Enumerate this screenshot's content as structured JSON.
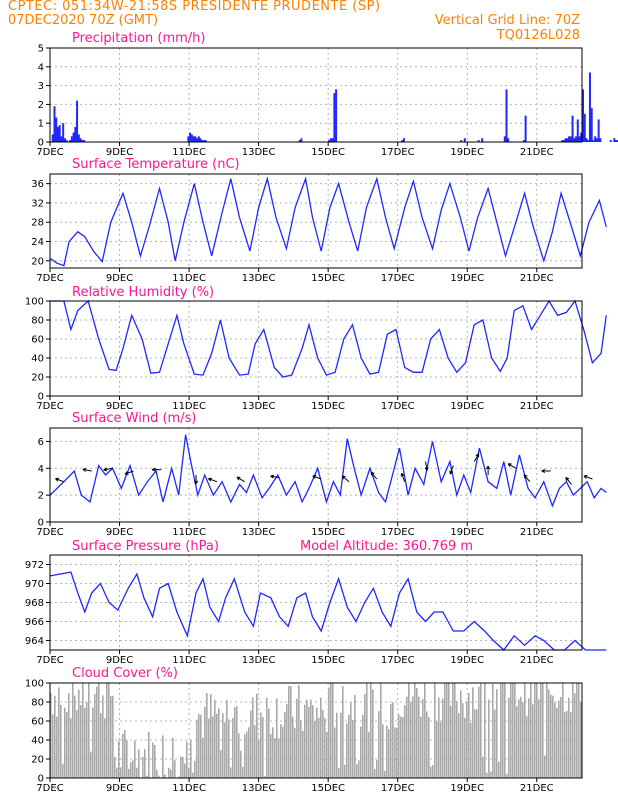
{
  "header": {
    "line1": "CPTEC:   051:34W-21:58S   PRESIDENTE PRUDENTE (SP)",
    "line2_left": "07DEC2020 70Z (GMT)",
    "line2_right": "Vertical Grid Line: 70Z",
    "line3_right": "TQ0126L028"
  },
  "colors": {
    "header": "#ff8000",
    "title": "#ff1493",
    "line": "#1e28ff",
    "bar": "#1e28ff",
    "cloud": "#a9a9a9",
    "grid": "#b4b4b4"
  },
  "chart_data": [
    {
      "id": "precip",
      "type": "bar",
      "title": "Precipitation (mm/h)",
      "xticks": [
        "7DEC",
        "9DEC",
        "11DEC",
        "13DEC",
        "15DEC",
        "17DEC",
        "19DEC",
        "21DEC"
      ],
      "xstart_label": "7DEC",
      "ylim": [
        0,
        5
      ],
      "yticks": [
        0,
        1,
        2,
        3,
        4,
        5
      ],
      "x_days": [
        0.05,
        0.1,
        0.15,
        0.2,
        0.25,
        0.3,
        0.35,
        0.4,
        0.45,
        0.55,
        0.6,
        0.65,
        0.7,
        0.75,
        0.8,
        0.85,
        0.9,
        0.95,
        3.95,
        4.0,
        4.05,
        4.1,
        4.15,
        4.2,
        4.25,
        4.3,
        4.35,
        4.4,
        4.45,
        7.15,
        7.2,
        8.0,
        8.05,
        8.1,
        8.15,
        8.2,
        10.1,
        10.15,
        11.8,
        11.9,
        12.3,
        12.4,
        13.05,
        13.1,
        13.15,
        13.6,
        13.65,
        14.7,
        14.75,
        14.8,
        14.85,
        14.9,
        14.95,
        15.0,
        15.05,
        15.1,
        15.15,
        15.2,
        15.25,
        15.3,
        15.35,
        15.4,
        15.45,
        15.5,
        15.55,
        15.6,
        15.65,
        15.7,
        15.75,
        15.8,
        16.1,
        16.2,
        16.25,
        16.3,
        16.35,
        16.7,
        16.75,
        17.3,
        17.35,
        18.3,
        18.35,
        18.4,
        18.9,
        18.95,
        19.0,
        19.05,
        19.1,
        19.15,
        19.2,
        19.25,
        19.3,
        19.35,
        19.4,
        19.45,
        19.5,
        19.6,
        19.65,
        19.7,
        19.75,
        19.8,
        19.85,
        19.9,
        19.95,
        20.0
      ],
      "values": [
        0.4,
        1.9,
        1.3,
        0.8,
        0.9,
        0.3,
        1.0,
        0.2,
        0.1,
        0.1,
        0.3,
        0.5,
        0.8,
        2.2,
        0.4,
        0.2,
        0.1,
        0.1,
        0.3,
        0.5,
        0.4,
        0.3,
        0.3,
        0.2,
        0.3,
        0.2,
        0.1,
        0.1,
        0.1,
        0.1,
        0.2,
        0.1,
        0.2,
        0.2,
        2.6,
        2.8,
        0.1,
        0.2,
        0.1,
        0.2,
        0.1,
        0.2,
        0.3,
        2.8,
        0.2,
        0.1,
        1.4,
        0.1,
        0.1,
        0.2,
        0.2,
        0.3,
        0.3,
        1.4,
        0.2,
        0.3,
        1.2,
        0.3,
        0.5,
        2.8,
        1.5,
        0.2,
        0.1,
        3.7,
        1.8,
        0.1,
        0.3,
        0.2,
        1.2,
        0.2,
        0.1,
        0.2,
        0.1,
        0.1,
        0.1,
        1.1,
        0.1,
        0.1,
        0.1,
        0.2,
        0.5,
        0.8,
        1.7,
        0.4,
        0.2,
        1.0,
        0.9,
        0.1,
        0.1,
        0.1,
        0.1,
        0.1,
        0.1,
        0.1,
        0.1,
        0.1,
        0.1,
        0.1,
        0.1,
        0.1,
        0.1,
        0.1,
        0.1,
        0.1
      ]
    },
    {
      "id": "temp",
      "type": "line",
      "title": "Surface Temperature (nC)",
      "ylim": [
        18.5,
        38
      ],
      "yticks": [
        20,
        24,
        28,
        32,
        36
      ],
      "x_days": [
        0,
        0.2,
        0.4,
        0.55,
        0.8,
        1.0,
        1.25,
        1.5,
        1.75,
        2.1,
        2.35,
        2.6,
        2.85,
        3.15,
        3.4,
        3.6,
        3.85,
        4.15,
        4.4,
        4.65,
        4.95,
        5.2,
        5.45,
        5.75,
        6.0,
        6.25,
        6.5,
        6.8,
        7.05,
        7.35,
        7.55,
        7.8,
        8.05,
        8.3,
        8.6,
        8.85,
        9.1,
        9.4,
        9.65,
        9.9,
        10.2,
        10.45,
        10.7,
        11.0,
        11.25,
        11.5,
        11.8,
        12.05,
        12.3,
        12.6,
        12.85,
        13.1,
        13.4,
        13.65,
        13.9,
        14.2,
        14.45,
        14.7,
        15.0,
        15.25,
        15.5,
        15.8,
        16.0
      ],
      "values": [
        20.5,
        19.5,
        19.0,
        24.0,
        26.0,
        25.0,
        22.0,
        19.8,
        28.0,
        34.0,
        28.0,
        21.0,
        27.0,
        35.0,
        28.0,
        20.0,
        28.0,
        36.0,
        28.0,
        21.0,
        30.0,
        37.0,
        29.0,
        22.0,
        31.0,
        37.0,
        29.0,
        22.5,
        31.0,
        37.0,
        29.0,
        22.0,
        31.0,
        36.0,
        28.0,
        22.0,
        31.0,
        37.0,
        29.0,
        22.5,
        31.0,
        36.5,
        29.0,
        22.5,
        30.5,
        36.0,
        29.0,
        22.0,
        29.0,
        35.0,
        28.0,
        21.0,
        28.0,
        34.0,
        27.0,
        20.0,
        26.0,
        34.0,
        27.0,
        21.0,
        28.0,
        32.5,
        27.0
      ]
    },
    {
      "id": "rh",
      "type": "line",
      "title": "Relative Humidity (%)",
      "ylim": [
        0,
        100
      ],
      "yticks": [
        0,
        20,
        40,
        60,
        80,
        100
      ],
      "x_days": [
        0,
        0.4,
        0.6,
        0.8,
        1.1,
        1.4,
        1.7,
        1.9,
        2.1,
        2.35,
        2.65,
        2.9,
        3.15,
        3.4,
        3.65,
        3.85,
        4.15,
        4.4,
        4.65,
        4.9,
        5.15,
        5.45,
        5.7,
        5.9,
        6.15,
        6.45,
        6.7,
        6.95,
        7.25,
        7.45,
        7.7,
        7.95,
        8.2,
        8.45,
        8.7,
        8.95,
        9.2,
        9.45,
        9.7,
        9.95,
        10.2,
        10.45,
        10.7,
        10.95,
        11.2,
        11.45,
        11.7,
        11.95,
        12.2,
        12.45,
        12.7,
        12.95,
        13.15,
        13.35,
        13.6,
        13.85,
        14.1,
        14.35,
        14.6,
        14.85,
        15.1,
        15.35,
        15.6,
        15.85,
        16.0
      ],
      "values": [
        100,
        100,
        70,
        90,
        100,
        60,
        28,
        27,
        50,
        85,
        60,
        24,
        25,
        55,
        85,
        55,
        23,
        22,
        45,
        80,
        40,
        22,
        23,
        55,
        70,
        30,
        20,
        22,
        50,
        75,
        40,
        22,
        25,
        60,
        75,
        40,
        23,
        25,
        65,
        70,
        30,
        25,
        25,
        60,
        70,
        40,
        25,
        35,
        75,
        80,
        40,
        26,
        40,
        90,
        95,
        70,
        85,
        100,
        85,
        88,
        100,
        70,
        35,
        45,
        85
      ]
    },
    {
      "id": "wind",
      "type": "line",
      "title": "Surface Wind (m/s)",
      "ylim": [
        0,
        7
      ],
      "yticks": [
        0,
        2,
        4,
        6
      ],
      "x_days": [
        0,
        0.2,
        0.4,
        0.7,
        0.9,
        1.15,
        1.4,
        1.6,
        1.8,
        2.05,
        2.3,
        2.55,
        2.8,
        3.05,
        3.25,
        3.5,
        3.7,
        3.9,
        4.05,
        4.25,
        4.45,
        4.7,
        4.95,
        5.2,
        5.45,
        5.65,
        5.85,
        6.1,
        6.3,
        6.55,
        6.8,
        7.05,
        7.25,
        7.45,
        7.7,
        7.95,
        8.15,
        8.35,
        8.55,
        8.75,
        8.95,
        9.2,
        9.45,
        9.65,
        9.85,
        10.05,
        10.3,
        10.5,
        10.75,
        11.0,
        11.25,
        11.5,
        11.7,
        11.9,
        12.1,
        12.35,
        12.6,
        12.85,
        13.05,
        13.25,
        13.5,
        13.75,
        13.95,
        14.2,
        14.45,
        14.65,
        14.85,
        15.05,
        15.25,
        15.45,
        15.65,
        15.85,
        16.0
      ],
      "values": [
        2.0,
        2.5,
        3.0,
        3.8,
        2.0,
        1.5,
        4.2,
        3.5,
        4.0,
        2.5,
        4.2,
        2.0,
        3.0,
        3.8,
        1.5,
        4.0,
        2.0,
        6.5,
        4.5,
        2.0,
        3.5,
        2.0,
        3.0,
        1.5,
        2.8,
        2.2,
        3.5,
        1.8,
        2.5,
        3.5,
        2.0,
        3.0,
        1.5,
        2.5,
        4.0,
        1.5,
        3.0,
        2.0,
        6.2,
        4.0,
        2.0,
        4.0,
        2.2,
        1.5,
        3.5,
        5.5,
        2.0,
        4.0,
        2.8,
        6.0,
        3.0,
        4.5,
        2.0,
        3.5,
        2.2,
        5.5,
        3.0,
        2.5,
        4.5,
        2.0,
        5.0,
        2.5,
        1.8,
        3.0,
        1.2,
        2.5,
        3.0,
        2.0,
        2.5,
        3.0,
        1.8,
        2.5,
        2.2
      ]
    },
    {
      "id": "pres",
      "type": "line",
      "title": "Surface Pressure (hPa)",
      "annotation": "Model Altitude: 360.769  m",
      "ylim": [
        963,
        973
      ],
      "yticks": [
        964,
        966,
        968,
        970,
        972
      ],
      "x_days": [
        0,
        0.3,
        0.6,
        0.8,
        1.0,
        1.2,
        1.45,
        1.7,
        1.95,
        2.25,
        2.5,
        2.7,
        2.95,
        3.15,
        3.4,
        3.65,
        3.95,
        4.2,
        4.4,
        4.6,
        4.85,
        5.05,
        5.3,
        5.6,
        5.85,
        6.05,
        6.35,
        6.6,
        6.85,
        7.1,
        7.35,
        7.55,
        7.8,
        8.05,
        8.3,
        8.55,
        8.8,
        9.05,
        9.3,
        9.55,
        9.8,
        10.05,
        10.3,
        10.55,
        10.8,
        11.05,
        11.3,
        11.6,
        11.9,
        12.2,
        12.5,
        12.75,
        13.05,
        13.35,
        13.65,
        13.95,
        14.2,
        14.5,
        14.8,
        15.1,
        15.4,
        15.7,
        16.0
      ],
      "values": [
        970.8,
        971.0,
        971.2,
        969.0,
        967.0,
        969.0,
        970.0,
        968.0,
        967.2,
        969.5,
        971.0,
        968.5,
        966.5,
        969.5,
        970.0,
        967.0,
        964.5,
        969.0,
        970.5,
        967.5,
        966.0,
        968.5,
        970.5,
        967.0,
        965.5,
        969.0,
        968.5,
        966.5,
        965.5,
        968.5,
        969.0,
        966.5,
        965.0,
        968.0,
        970.5,
        967.5,
        966.0,
        968.0,
        969.5,
        967.0,
        965.5,
        969.0,
        970.5,
        967.0,
        966.0,
        967.0,
        967.0,
        965.0,
        965.0,
        966.0,
        965.0,
        964.0,
        963.0,
        964.5,
        963.5,
        964.5,
        964.0,
        963.0,
        963.0,
        964.0,
        962.5,
        961.0,
        962.0
      ]
    },
    {
      "id": "cloud",
      "type": "area",
      "title": "Cloud Cover (%)",
      "ylim": [
        0,
        100
      ],
      "yticks": [
        0,
        20,
        40,
        60,
        80,
        100
      ]
    }
  ]
}
